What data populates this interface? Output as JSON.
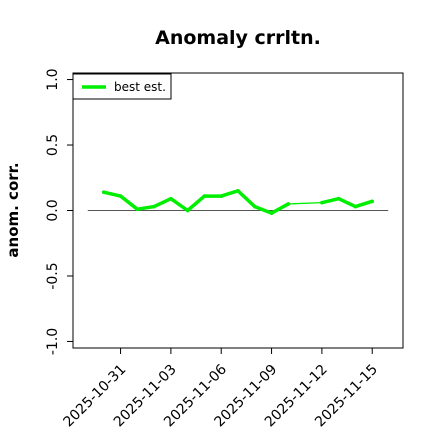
{
  "chart_data": {
    "type": "line",
    "title": "Anomaly crrltn.",
    "xlabel": "",
    "ylabel": "anom. corr.",
    "x_ticks": [
      "2025-10-31",
      "2025-11-03",
      "2025-11-06",
      "2025-11-09",
      "2025-11-12",
      "2025-11-15"
    ],
    "y_ticks": [
      "-1.0",
      "-0.5",
      "0.0",
      "0.5",
      "1.0"
    ],
    "xlim": [
      "2025-10-29",
      "2025-11-16"
    ],
    "ylim": [
      -1.05,
      1.05
    ],
    "reference_line": 0.0,
    "legend": {
      "position": "top-left",
      "entries": [
        "best est."
      ]
    },
    "grid": false,
    "series": [
      {
        "name": "best est.",
        "color": "#00ee00",
        "points": [
          {
            "x": "2025-10-30",
            "y": 0.14
          },
          {
            "x": "2025-10-31",
            "y": 0.11
          },
          {
            "x": "2025-11-01",
            "y": 0.01
          },
          {
            "x": "2025-11-02",
            "y": 0.03
          },
          {
            "x": "2025-11-03",
            "y": 0.09
          },
          {
            "x": "2025-11-04",
            "y": 0.0
          },
          {
            "x": "2025-11-05",
            "y": 0.11
          },
          {
            "x": "2025-11-06",
            "y": 0.11
          },
          {
            "x": "2025-11-07",
            "y": 0.15
          },
          {
            "x": "2025-11-08",
            "y": 0.03
          },
          {
            "x": "2025-11-09",
            "y": -0.02
          },
          {
            "x": "2025-11-10",
            "y": 0.05
          },
          {
            "x": "2025-11-12",
            "y": 0.06
          },
          {
            "x": "2025-11-13",
            "y": 0.09
          },
          {
            "x": "2025-11-14",
            "y": 0.03
          },
          {
            "x": "2025-11-15",
            "y": 0.07
          }
        ]
      }
    ]
  }
}
